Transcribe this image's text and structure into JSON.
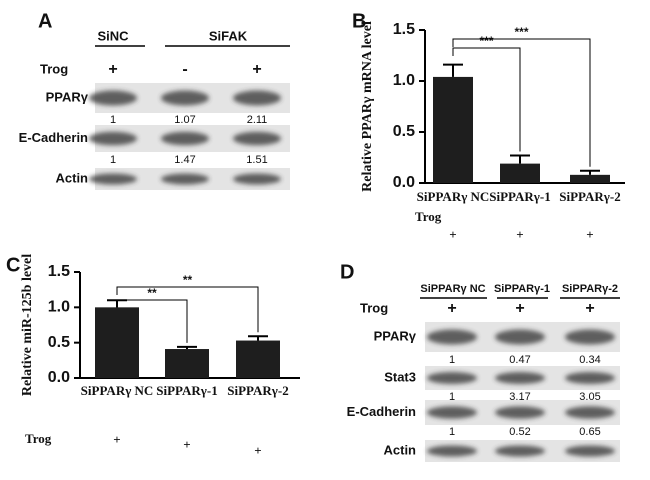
{
  "chart_data": [
    {
      "type": "bar",
      "panel_label": "B",
      "ylabel": "Relative PPARγ mRNA level",
      "categories": [
        "SiPPARγ NC",
        "SiPPARγ-1",
        "SiPPARγ-2"
      ],
      "values": [
        1.04,
        0.19,
        0.08
      ],
      "errors": [
        0.12,
        0.08,
        0.04
      ],
      "color": "#1e1e1e",
      "ylim": [
        0,
        1.5
      ],
      "yticks": [
        {
          "value": 0,
          "label": "0.0"
        },
        0.5,
        {
          "value": 1,
          "label": "1.0"
        },
        1.5
      ],
      "treatment": {
        "label": "Trog",
        "values": [
          "+",
          "+",
          "+"
        ]
      },
      "significance": [
        "***",
        "***"
      ]
    },
    {
      "type": "bar",
      "panel_label": "C",
      "ylabel": "Relative miR-125b level",
      "categories": [
        "SiPPARγ NC",
        "SiPPARγ-1",
        "SiPPARγ-2"
      ],
      "values": [
        1.0,
        0.41,
        0.53
      ],
      "errors": [
        0.1,
        0.03,
        0.06
      ],
      "color": "#1e1e1e",
      "ylim": [
        0,
        1.5
      ],
      "yticks": [
        {
          "value": 0,
          "label": "0.0"
        },
        0.5,
        {
          "value": 1,
          "label": "1.0"
        },
        1.5
      ],
      "treatment": {
        "label": "Trog",
        "values": [
          "+",
          "+",
          "+"
        ]
      },
      "significance": [
        "**",
        "**"
      ]
    }
  ],
  "blots": [
    {
      "panel_label": "A",
      "groups": [
        "SiNC",
        "SiFAK"
      ],
      "treatment": {
        "label": "Trog",
        "values": [
          "+",
          "-",
          "+"
        ]
      },
      "rows": [
        {
          "label": "PPARγ",
          "quant": [
            "1",
            "1.07",
            "2.11"
          ]
        },
        {
          "label": "E-Cadherin",
          "quant": [
            "1",
            "1.47",
            "1.51"
          ]
        },
        {
          "label": "Actin"
        }
      ]
    },
    {
      "panel_label": "D",
      "groups": [
        "SiPPARγ NC",
        "SiPPARγ-1",
        "SiPPARγ-2"
      ],
      "treatment": {
        "label": "Trog",
        "values": [
          "+",
          "+",
          "+"
        ]
      },
      "rows": [
        {
          "label": "PPARγ",
          "quant": [
            "1",
            "0.47",
            "0.34"
          ]
        },
        {
          "label": "Stat3",
          "quant": [
            "1",
            "3.17",
            "3.05"
          ]
        },
        {
          "label": "E-Cadherin",
          "quant": [
            "1",
            "0.52",
            "0.65"
          ]
        },
        {
          "label": "Actin"
        }
      ]
    }
  ]
}
